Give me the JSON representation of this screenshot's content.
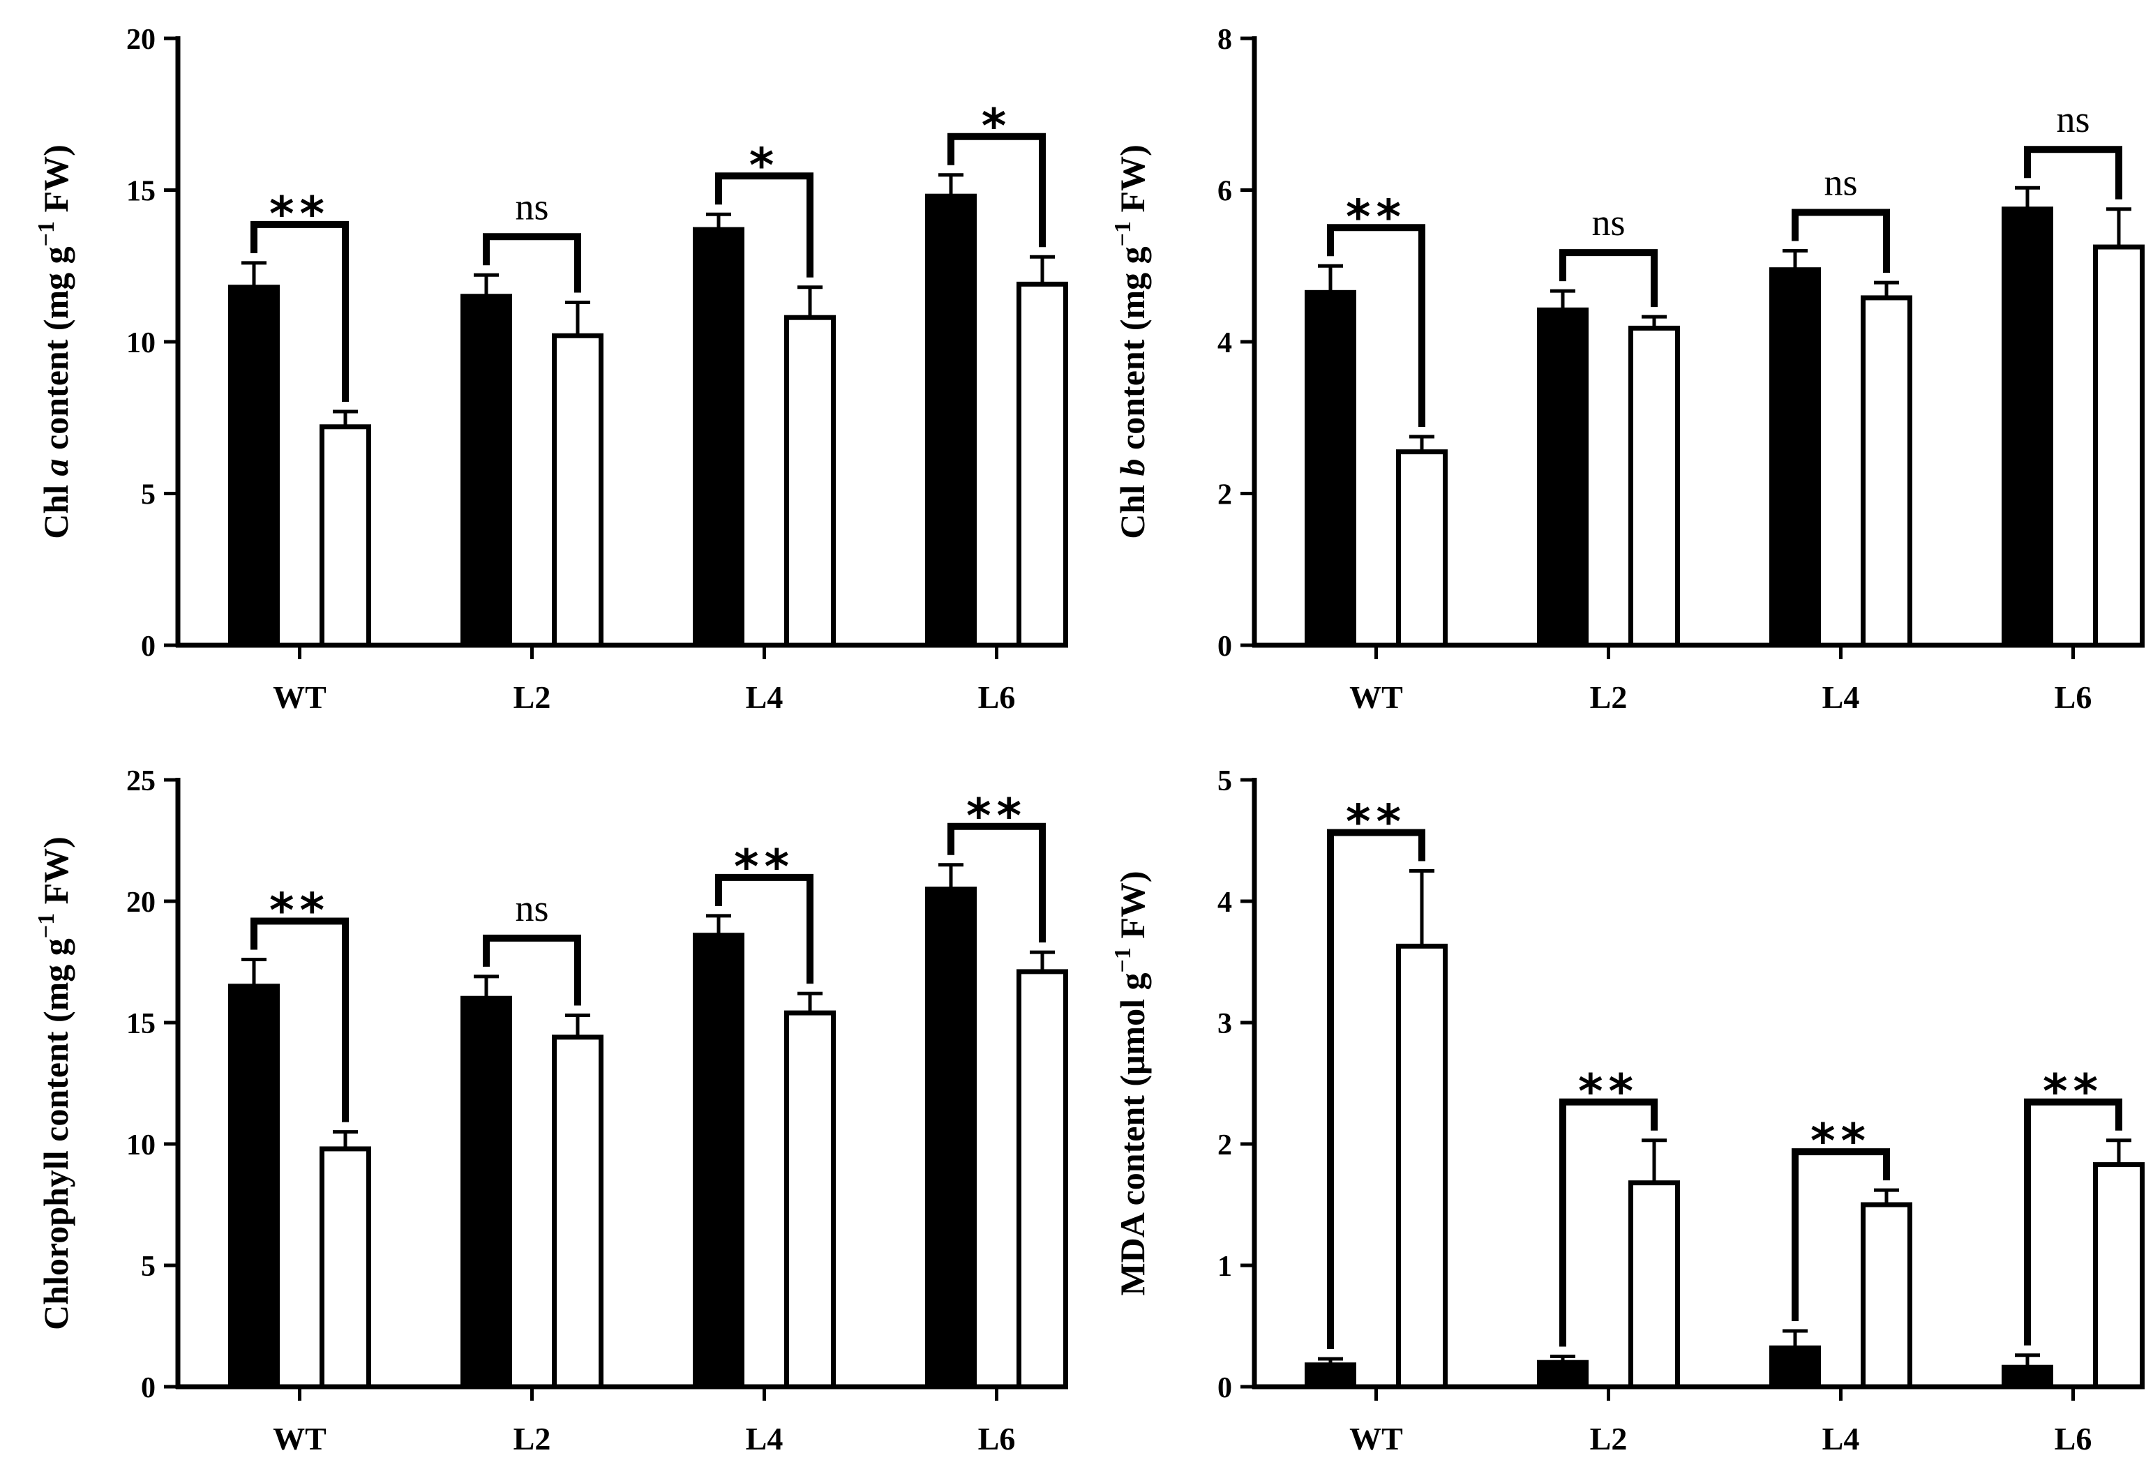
{
  "chart_data": [
    {
      "type": "bar",
      "panel": "top-left",
      "ylabel_parts": [
        "Chl ",
        "a",
        " content (mg g",
        "−1",
        " FW)"
      ],
      "categories": [
        "WT",
        "L2",
        "L4",
        "L6"
      ],
      "ylim": [
        0,
        20
      ],
      "yticks": [
        0,
        5,
        10,
        15,
        20
      ],
      "series": [
        {
          "name": "filled",
          "color": "#000000",
          "values": [
            11.8,
            11.5,
            13.7,
            14.8
          ],
          "errors": [
            0.8,
            0.7,
            0.5,
            0.7
          ]
        },
        {
          "name": "open",
          "color": "#ffffff",
          "values": [
            7.2,
            10.2,
            10.8,
            11.9
          ],
          "errors": [
            0.5,
            1.1,
            1.0,
            0.9
          ]
        }
      ],
      "significance": [
        "**",
        "ns",
        "*",
        "*"
      ]
    },
    {
      "type": "bar",
      "panel": "top-right",
      "ylabel_parts": [
        "Chl ",
        "b",
        " content (mg g",
        "−1",
        " FW)"
      ],
      "categories": [
        "WT",
        "L2",
        "L4",
        "L6"
      ],
      "ylim": [
        0,
        8
      ],
      "yticks": [
        0,
        2,
        4,
        6,
        8
      ],
      "series": [
        {
          "name": "filled",
          "color": "#000000",
          "values": [
            4.65,
            4.42,
            4.95,
            5.75
          ],
          "errors": [
            0.35,
            0.25,
            0.25,
            0.28
          ]
        },
        {
          "name": "open",
          "color": "#ffffff",
          "values": [
            2.55,
            4.18,
            4.58,
            5.25
          ],
          "errors": [
            0.2,
            0.15,
            0.2,
            0.5
          ]
        }
      ],
      "significance": [
        "**",
        "ns",
        "ns",
        "ns"
      ]
    },
    {
      "type": "bar",
      "panel": "bottom-left",
      "ylabel_parts": [
        "Chlorophyll content (mg g",
        "−1",
        " FW)"
      ],
      "categories": [
        "WT",
        "L2",
        "L4",
        "L6"
      ],
      "ylim": [
        0,
        25
      ],
      "yticks": [
        0,
        5,
        10,
        15,
        20,
        25
      ],
      "series": [
        {
          "name": "filled",
          "color": "#000000",
          "values": [
            16.5,
            16.0,
            18.6,
            20.5
          ],
          "errors": [
            1.1,
            0.9,
            0.8,
            1.0
          ]
        },
        {
          "name": "open",
          "color": "#ffffff",
          "values": [
            9.8,
            14.4,
            15.4,
            17.1
          ],
          "errors": [
            0.7,
            0.9,
            0.8,
            0.8
          ]
        }
      ],
      "significance": [
        "**",
        "ns",
        "**",
        "**"
      ]
    },
    {
      "type": "bar",
      "panel": "bottom-right",
      "ylabel_parts": [
        "MDA content (μmol g",
        "−1",
        " FW)"
      ],
      "categories": [
        "WT",
        "L2",
        "L4",
        "L6"
      ],
      "ylim": [
        0,
        5
      ],
      "yticks": [
        0,
        1,
        2,
        3,
        4,
        5
      ],
      "series": [
        {
          "name": "filled",
          "color": "#000000",
          "values": [
            0.18,
            0.2,
            0.32,
            0.16
          ],
          "errors": [
            0.05,
            0.05,
            0.14,
            0.1
          ]
        },
        {
          "name": "open",
          "color": "#ffffff",
          "values": [
            3.63,
            1.68,
            1.5,
            1.83
          ],
          "errors": [
            0.62,
            0.35,
            0.12,
            0.2
          ]
        }
      ],
      "significance": [
        "**",
        "**",
        "**",
        "**"
      ]
    }
  ]
}
